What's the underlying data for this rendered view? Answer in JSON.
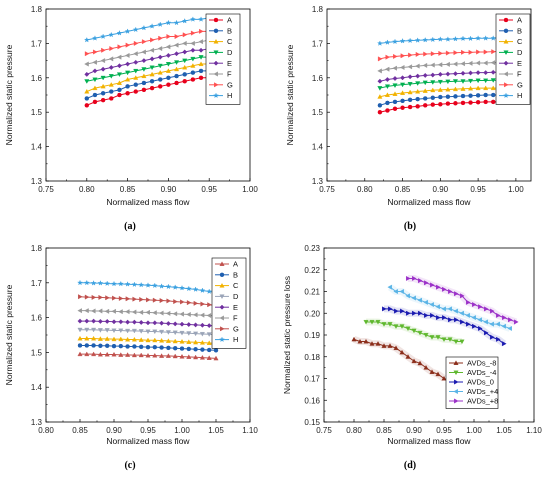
{
  "chart_data": [
    {
      "type": "line",
      "panel_label": "(a)",
      "xlabel": "Normalized mass flow",
      "ylabel": "Normalized static pressure",
      "xlim": [
        0.75,
        1.0
      ],
      "ylim": [
        1.3,
        1.8
      ],
      "xticks": [
        "0.75",
        "0.80",
        "0.85",
        "0.90",
        "0.95",
        "1.00"
      ],
      "yticks": [
        "1.3",
        "1.4",
        "1.5",
        "1.6",
        "1.7",
        "1.8"
      ],
      "legend": "top-right",
      "x": [
        0.8,
        0.81,
        0.82,
        0.83,
        0.84,
        0.85,
        0.86,
        0.87,
        0.88,
        0.89,
        0.9,
        0.91,
        0.92,
        0.93,
        0.94,
        0.95
      ],
      "series": [
        {
          "name": "A",
          "color": "#e8001c",
          "marker": "circle",
          "values": [
            1.52,
            1.53,
            1.535,
            1.54,
            1.55,
            1.555,
            1.56,
            1.565,
            1.57,
            1.575,
            1.58,
            1.585,
            1.59,
            1.595,
            1.6,
            1.6
          ]
        },
        {
          "name": "B",
          "color": "#1f5fb0",
          "marker": "circle",
          "values": [
            1.54,
            1.55,
            1.555,
            1.56,
            1.565,
            1.575,
            1.58,
            1.585,
            1.59,
            1.595,
            1.6,
            1.605,
            1.61,
            1.615,
            1.62,
            1.62
          ]
        },
        {
          "name": "C",
          "color": "#f2b200",
          "marker": "triangle-up",
          "values": [
            1.56,
            1.57,
            1.575,
            1.58,
            1.585,
            1.595,
            1.6,
            1.605,
            1.61,
            1.615,
            1.62,
            1.625,
            1.63,
            1.635,
            1.64,
            1.64
          ]
        },
        {
          "name": "D",
          "color": "#00b050",
          "marker": "triangle-down",
          "values": [
            1.59,
            1.595,
            1.6,
            1.605,
            1.61,
            1.615,
            1.62,
            1.625,
            1.63,
            1.635,
            1.64,
            1.645,
            1.65,
            1.655,
            1.66,
            1.66
          ]
        },
        {
          "name": "E",
          "color": "#7030a0",
          "marker": "diamond",
          "values": [
            1.61,
            1.62,
            1.625,
            1.63,
            1.635,
            1.64,
            1.645,
            1.65,
            1.655,
            1.66,
            1.665,
            1.67,
            1.675,
            1.68,
            1.68,
            1.685
          ]
        },
        {
          "name": "F",
          "color": "#999999",
          "marker": "triangle-left",
          "values": [
            1.64,
            1.645,
            1.65,
            1.655,
            1.66,
            1.665,
            1.67,
            1.675,
            1.68,
            1.685,
            1.69,
            1.695,
            1.7,
            1.7,
            1.705,
            1.71
          ]
        },
        {
          "name": "G",
          "color": "#ff5050",
          "marker": "triangle-right",
          "values": [
            1.67,
            1.675,
            1.68,
            1.685,
            1.69,
            1.695,
            1.7,
            1.705,
            1.71,
            1.715,
            1.72,
            1.72,
            1.725,
            1.73,
            1.735,
            1.735
          ]
        },
        {
          "name": "H",
          "color": "#3aa0e0",
          "marker": "star",
          "values": [
            1.71,
            1.715,
            1.72,
            1.725,
            1.73,
            1.735,
            1.74,
            1.745,
            1.75,
            1.755,
            1.76,
            1.76,
            1.765,
            1.77,
            1.77,
            1.775
          ]
        }
      ]
    },
    {
      "type": "line",
      "panel_label": "(b)",
      "xlabel": "Normalized mass flow",
      "ylabel": "Normalized static pressure",
      "xlim": [
        0.75,
        1.02
      ],
      "ylim": [
        1.3,
        1.8
      ],
      "xticks": [
        "0.75",
        "0.80",
        "0.85",
        "0.90",
        "0.95",
        "1.00"
      ],
      "yticks": [
        "1.3",
        "1.4",
        "1.5",
        "1.6",
        "1.7",
        "1.8"
      ],
      "legend": "top-right",
      "x": [
        0.82,
        0.83,
        0.84,
        0.85,
        0.86,
        0.87,
        0.88,
        0.89,
        0.9,
        0.91,
        0.92,
        0.93,
        0.94,
        0.95,
        0.96,
        0.97,
        0.98
      ],
      "series": [
        {
          "name": "A",
          "color": "#e8001c",
          "marker": "circle",
          "values": [
            1.5,
            1.505,
            1.51,
            1.513,
            1.515,
            1.517,
            1.52,
            1.522,
            1.523,
            1.525,
            1.526,
            1.527,
            1.528,
            1.529,
            1.53,
            1.53,
            1.53
          ]
        },
        {
          "name": "B",
          "color": "#1f5fb0",
          "marker": "circle",
          "values": [
            1.52,
            1.527,
            1.53,
            1.533,
            1.536,
            1.538,
            1.54,
            1.542,
            1.544,
            1.545,
            1.546,
            1.547,
            1.548,
            1.549,
            1.55,
            1.55,
            1.55
          ]
        },
        {
          "name": "C",
          "color": "#f2b200",
          "marker": "triangle-up",
          "values": [
            1.545,
            1.55,
            1.553,
            1.556,
            1.558,
            1.56,
            1.562,
            1.564,
            1.565,
            1.566,
            1.567,
            1.568,
            1.569,
            1.57,
            1.57,
            1.57,
            1.57
          ]
        },
        {
          "name": "D",
          "color": "#00b050",
          "marker": "triangle-down",
          "values": [
            1.57,
            1.575,
            1.578,
            1.58,
            1.582,
            1.584,
            1.586,
            1.587,
            1.588,
            1.589,
            1.59,
            1.59,
            1.591,
            1.592,
            1.592,
            1.593,
            1.593
          ]
        },
        {
          "name": "E",
          "color": "#7030a0",
          "marker": "diamond",
          "values": [
            1.59,
            1.595,
            1.598,
            1.6,
            1.603,
            1.605,
            1.607,
            1.608,
            1.61,
            1.611,
            1.612,
            1.613,
            1.614,
            1.615,
            1.615,
            1.616,
            1.616
          ]
        },
        {
          "name": "F",
          "color": "#999999",
          "marker": "triangle-left",
          "values": [
            1.62,
            1.625,
            1.628,
            1.63,
            1.632,
            1.634,
            1.636,
            1.637,
            1.638,
            1.639,
            1.64,
            1.641,
            1.642,
            1.643,
            1.643,
            1.644,
            1.644
          ]
        },
        {
          "name": "G",
          "color": "#ff5050",
          "marker": "triangle-right",
          "values": [
            1.655,
            1.66,
            1.662,
            1.664,
            1.666,
            1.668,
            1.669,
            1.67,
            1.671,
            1.672,
            1.673,
            1.674,
            1.674,
            1.675,
            1.675,
            1.676,
            1.676
          ]
        },
        {
          "name": "H",
          "color": "#3aa0e0",
          "marker": "star",
          "values": [
            1.7,
            1.703,
            1.705,
            1.707,
            1.708,
            1.709,
            1.71,
            1.711,
            1.712,
            1.712,
            1.713,
            1.714,
            1.714,
            1.715,
            1.715,
            1.715,
            1.716
          ]
        }
      ]
    },
    {
      "type": "line",
      "panel_label": "(c)",
      "xlabel": "Normalized mass flow",
      "ylabel": "Normalized static pressure",
      "xlim": [
        0.8,
        1.1
      ],
      "ylim": [
        1.3,
        1.8
      ],
      "xticks": [
        "0.80",
        "0.85",
        "0.90",
        "0.95",
        "1.00",
        "1.05",
        "1.10"
      ],
      "yticks": [
        "1.3",
        "1.4",
        "1.5",
        "1.6",
        "1.7",
        "1.8"
      ],
      "legend": "top-right",
      "x": [
        0.85,
        0.86,
        0.87,
        0.88,
        0.89,
        0.9,
        0.91,
        0.92,
        0.93,
        0.94,
        0.95,
        0.96,
        0.97,
        0.98,
        0.99,
        1.0,
        1.01,
        1.02,
        1.03,
        1.04,
        1.05
      ],
      "series": [
        {
          "name": "A",
          "color": "#c0504d",
          "marker": "triangle-up",
          "values": [
            1.495,
            1.495,
            1.495,
            1.494,
            1.494,
            1.494,
            1.493,
            1.493,
            1.492,
            1.492,
            1.491,
            1.491,
            1.49,
            1.49,
            1.489,
            1.488,
            1.487,
            1.486,
            1.485,
            1.484,
            1.483
          ]
        },
        {
          "name": "B",
          "color": "#1f5fb0",
          "marker": "circle",
          "values": [
            1.52,
            1.52,
            1.52,
            1.519,
            1.519,
            1.518,
            1.518,
            1.517,
            1.517,
            1.516,
            1.515,
            1.515,
            1.514,
            1.513,
            1.512,
            1.511,
            1.51,
            1.509,
            1.508,
            1.507,
            1.506
          ]
        },
        {
          "name": "C",
          "color": "#f2b200",
          "marker": "triangle-up",
          "values": [
            1.54,
            1.54,
            1.54,
            1.539,
            1.539,
            1.538,
            1.538,
            1.537,
            1.537,
            1.536,
            1.535,
            1.535,
            1.534,
            1.533,
            1.532,
            1.531,
            1.53,
            1.529,
            1.528,
            1.527,
            1.526
          ]
        },
        {
          "name": "D",
          "color": "#9aa4b8",
          "marker": "triangle-down",
          "values": [
            1.565,
            1.565,
            1.565,
            1.564,
            1.564,
            1.563,
            1.563,
            1.562,
            1.562,
            1.561,
            1.56,
            1.56,
            1.559,
            1.558,
            1.557,
            1.556,
            1.555,
            1.554,
            1.553,
            1.552,
            1.551
          ]
        },
        {
          "name": "E",
          "color": "#7030a0",
          "marker": "diamond",
          "values": [
            1.59,
            1.59,
            1.59,
            1.589,
            1.589,
            1.588,
            1.588,
            1.587,
            1.587,
            1.586,
            1.585,
            1.585,
            1.584,
            1.583,
            1.582,
            1.581,
            1.58,
            1.579,
            1.578,
            1.577,
            1.576
          ]
        },
        {
          "name": "F",
          "color": "#999999",
          "marker": "triangle-left",
          "values": [
            1.62,
            1.62,
            1.619,
            1.619,
            1.618,
            1.618,
            1.617,
            1.617,
            1.616,
            1.615,
            1.615,
            1.614,
            1.613,
            1.612,
            1.611,
            1.61,
            1.609,
            1.608,
            1.607,
            1.606,
            1.605
          ]
        },
        {
          "name": "G",
          "color": "#c0504d",
          "marker": "triangle-right",
          "values": [
            1.66,
            1.659,
            1.658,
            1.658,
            1.657,
            1.656,
            1.655,
            1.654,
            1.653,
            1.652,
            1.651,
            1.65,
            1.649,
            1.648,
            1.646,
            1.645,
            1.643,
            1.641,
            1.639,
            1.637,
            1.635
          ]
        },
        {
          "name": "H",
          "color": "#3aa0e0",
          "marker": "star",
          "values": [
            1.7,
            1.7,
            1.699,
            1.699,
            1.698,
            1.697,
            1.697,
            1.696,
            1.695,
            1.694,
            1.693,
            1.692,
            1.69,
            1.689,
            1.687,
            1.685,
            1.683,
            1.681,
            1.678,
            1.675,
            1.672
          ]
        }
      ]
    },
    {
      "type": "line",
      "panel_label": "(d)",
      "xlabel": "Normalized mass flow",
      "ylabel": "Normalized static pressure loss",
      "xlim": [
        0.75,
        1.1
      ],
      "ylim": [
        0.15,
        0.23
      ],
      "xticks": [
        "0.75",
        "0.80",
        "0.85",
        "0.90",
        "0.95",
        "1.00",
        "1.05",
        "1.10"
      ],
      "yticks": [
        "0.15",
        "0.16",
        "0.17",
        "0.18",
        "0.19",
        "0.20",
        "0.21",
        "0.22",
        "0.23"
      ],
      "legend": "bottom-right",
      "series": [
        {
          "name": "AVDs_-8",
          "color": "#8b2d1a",
          "marker": "triangle-up",
          "x": [
            0.8,
            0.81,
            0.82,
            0.83,
            0.84,
            0.85,
            0.86,
            0.87,
            0.88,
            0.89,
            0.9,
            0.91,
            0.92,
            0.93,
            0.94,
            0.95
          ],
          "values": [
            0.188,
            0.187,
            0.187,
            0.186,
            0.186,
            0.185,
            0.185,
            0.184,
            0.182,
            0.18,
            0.178,
            0.177,
            0.175,
            0.173,
            0.172,
            0.17
          ]
        },
        {
          "name": "AVDs_-4",
          "color": "#5fb82e",
          "marker": "triangle-down",
          "x": [
            0.82,
            0.83,
            0.84,
            0.85,
            0.86,
            0.87,
            0.88,
            0.89,
            0.9,
            0.91,
            0.92,
            0.93,
            0.94,
            0.95,
            0.96,
            0.97,
            0.98
          ],
          "values": [
            0.196,
            0.196,
            0.196,
            0.195,
            0.195,
            0.194,
            0.194,
            0.193,
            0.192,
            0.191,
            0.19,
            0.189,
            0.189,
            0.188,
            0.188,
            0.187,
            0.187
          ]
        },
        {
          "name": "AVDs_0",
          "color": "#1a1ab0",
          "marker": "triangle-right",
          "x": [
            0.85,
            0.86,
            0.87,
            0.88,
            0.89,
            0.9,
            0.91,
            0.92,
            0.93,
            0.94,
            0.95,
            0.96,
            0.97,
            0.98,
            0.99,
            1.0,
            1.01,
            1.02,
            1.03,
            1.04,
            1.05
          ],
          "values": [
            0.202,
            0.202,
            0.201,
            0.201,
            0.2,
            0.2,
            0.2,
            0.199,
            0.199,
            0.198,
            0.198,
            0.197,
            0.197,
            0.196,
            0.195,
            0.194,
            0.193,
            0.191,
            0.189,
            0.188,
            0.186
          ]
        },
        {
          "name": "AVDs_+4",
          "color": "#5ab4e6",
          "marker": "triangle-left",
          "x": [
            0.86,
            0.87,
            0.88,
            0.89,
            0.9,
            0.91,
            0.92,
            0.93,
            0.94,
            0.95,
            0.96,
            0.97,
            0.98,
            0.99,
            1.0,
            1.01,
            1.02,
            1.03,
            1.04,
            1.05,
            1.06
          ],
          "values": [
            0.212,
            0.21,
            0.21,
            0.208,
            0.207,
            0.206,
            0.205,
            0.204,
            0.203,
            0.202,
            0.202,
            0.201,
            0.2,
            0.199,
            0.198,
            0.197,
            0.196,
            0.195,
            0.195,
            0.194,
            0.193
          ]
        },
        {
          "name": "AVDs_+8",
          "color": "#9b30c8",
          "marker": "triangle-right",
          "x": [
            0.89,
            0.9,
            0.91,
            0.92,
            0.93,
            0.94,
            0.95,
            0.96,
            0.97,
            0.98,
            0.99,
            1.0,
            1.01,
            1.02,
            1.03,
            1.04,
            1.05,
            1.06,
            1.07
          ],
          "values": [
            0.216,
            0.216,
            0.215,
            0.214,
            0.213,
            0.212,
            0.211,
            0.21,
            0.209,
            0.208,
            0.205,
            0.204,
            0.203,
            0.202,
            0.201,
            0.199,
            0.198,
            0.197,
            0.196
          ]
        }
      ]
    }
  ]
}
